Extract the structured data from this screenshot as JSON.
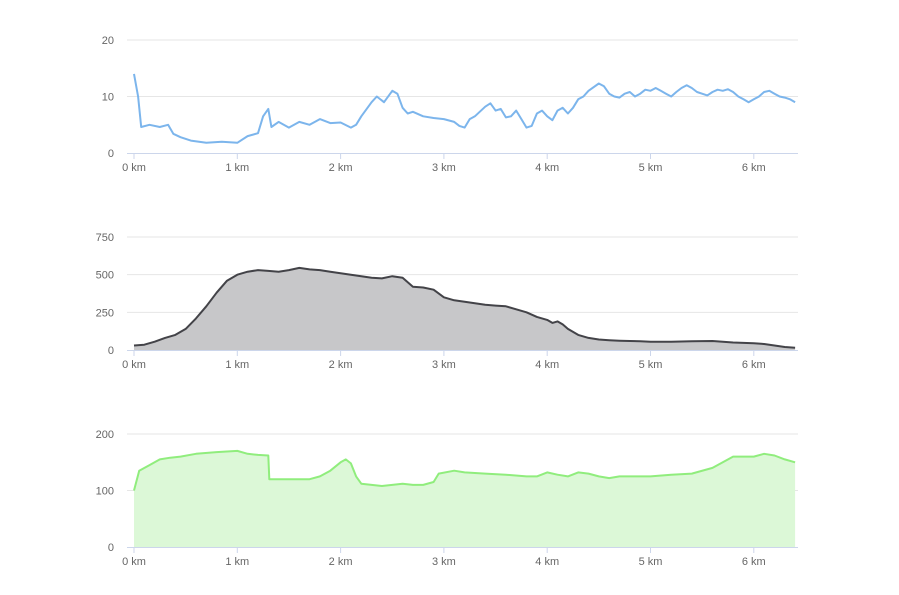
{
  "colors": {
    "speed_line": "#7cb5ec",
    "elevation_line": "#434348",
    "elevation_fill": "#c7c7c9",
    "heart_line": "#90ed7d",
    "heart_fill": "#dcf8d7",
    "grid": "#e6e6e6",
    "label": "#666666"
  },
  "chart_data": [
    {
      "type": "line",
      "xunit": "km",
      "xlim": [
        0,
        6.45
      ],
      "ylim": [
        0,
        20
      ],
      "xticks": [
        0,
        1,
        2,
        3,
        4,
        5,
        6
      ],
      "xtick_labels": [
        "0 km",
        "1 km",
        "2 km",
        "3 km",
        "4 km",
        "5 km",
        "6 km"
      ],
      "yticks": [
        0,
        10,
        20
      ],
      "ytick_labels": [
        "0",
        "10",
        "20"
      ],
      "grid": true,
      "series": [
        {
          "x": [
            0,
            0.04,
            0.07,
            0.15,
            0.25,
            0.33,
            0.38,
            0.45,
            0.55,
            0.7,
            0.85,
            1.0,
            1.1,
            1.2,
            1.25,
            1.3,
            1.33,
            1.4,
            1.5,
            1.6,
            1.7,
            1.8,
            1.9,
            2.0,
            2.1,
            2.15,
            2.2,
            2.3,
            2.35,
            2.42,
            2.5,
            2.55,
            2.6,
            2.65,
            2.7,
            2.8,
            2.9,
            3.0,
            3.1,
            3.15,
            3.2,
            3.25,
            3.3,
            3.4,
            3.45,
            3.5,
            3.55,
            3.6,
            3.65,
            3.7,
            3.75,
            3.8,
            3.85,
            3.9,
            3.95,
            4.0,
            4.05,
            4.1,
            4.15,
            4.2,
            4.25,
            4.3,
            4.35,
            4.4,
            4.5,
            4.55,
            4.6,
            4.65,
            4.7,
            4.75,
            4.8,
            4.85,
            4.9,
            4.95,
            5.0,
            5.05,
            5.1,
            5.15,
            5.2,
            5.25,
            5.3,
            5.35,
            5.4,
            5.45,
            5.5,
            5.55,
            5.6,
            5.65,
            5.7,
            5.75,
            5.8,
            5.85,
            5.9,
            5.95,
            6.0,
            6.05,
            6.1,
            6.15,
            6.2,
            6.25,
            6.3,
            6.35,
            6.4
          ],
          "values": [
            14,
            10,
            4.6,
            5.0,
            4.6,
            5.0,
            3.4,
            2.8,
            2.2,
            1.8,
            2.0,
            1.8,
            3.0,
            3.5,
            6.5,
            7.8,
            4.6,
            5.5,
            4.5,
            5.5,
            5.0,
            6.0,
            5.3,
            5.4,
            4.5,
            5.0,
            6.5,
            9.0,
            10.0,
            9.0,
            11.0,
            10.5,
            8.0,
            7.0,
            7.3,
            6.5,
            6.2,
            6.0,
            5.5,
            4.8,
            4.5,
            6.0,
            6.5,
            8.2,
            8.8,
            7.5,
            7.8,
            6.3,
            6.5,
            7.5,
            6.0,
            4.5,
            4.8,
            7.0,
            7.5,
            6.5,
            5.8,
            7.5,
            8.0,
            7.0,
            8.0,
            9.5,
            10.0,
            11.0,
            12.3,
            11.8,
            10.5,
            10.0,
            9.8,
            10.5,
            10.8,
            10.0,
            10.5,
            11.2,
            11.0,
            11.5,
            11.0,
            10.5,
            10.0,
            10.8,
            11.5,
            12.0,
            11.5,
            10.8,
            10.5,
            10.2,
            10.8,
            11.2,
            11.0,
            11.3,
            10.8,
            10.0,
            9.5,
            9.0,
            9.5,
            10.0,
            10.8,
            11.0,
            10.5,
            10.0,
            9.8,
            9.5,
            9.0
          ]
        }
      ]
    },
    {
      "type": "area",
      "xunit": "km",
      "xlim": [
        0,
        6.45
      ],
      "ylim": [
        0,
        750
      ],
      "xticks": [
        0,
        1,
        2,
        3,
        4,
        5,
        6
      ],
      "xtick_labels": [
        "0 km",
        "1 km",
        "2 km",
        "3 km",
        "4 km",
        "5 km",
        "6 km"
      ],
      "yticks": [
        0,
        250,
        500,
        750
      ],
      "ytick_labels": [
        "0",
        "250",
        "500",
        "750"
      ],
      "grid": true,
      "series": [
        {
          "x": [
            0,
            0.1,
            0.2,
            0.3,
            0.4,
            0.5,
            0.6,
            0.7,
            0.8,
            0.9,
            1.0,
            1.1,
            1.2,
            1.3,
            1.4,
            1.5,
            1.6,
            1.7,
            1.8,
            1.9,
            2.0,
            2.1,
            2.2,
            2.3,
            2.4,
            2.5,
            2.6,
            2.7,
            2.8,
            2.9,
            3.0,
            3.1,
            3.2,
            3.3,
            3.4,
            3.5,
            3.6,
            3.7,
            3.8,
            3.9,
            4.0,
            4.05,
            4.1,
            4.15,
            4.2,
            4.3,
            4.4,
            4.5,
            4.6,
            4.7,
            4.8,
            4.9,
            5.0,
            5.2,
            5.4,
            5.6,
            5.8,
            6.0,
            6.1,
            6.2,
            6.3,
            6.4
          ],
          "values": [
            30,
            35,
            55,
            80,
            100,
            140,
            210,
            290,
            380,
            460,
            500,
            520,
            530,
            525,
            520,
            530,
            545,
            535,
            530,
            520,
            510,
            500,
            490,
            480,
            475,
            490,
            480,
            420,
            415,
            400,
            350,
            330,
            320,
            310,
            300,
            295,
            290,
            270,
            250,
            220,
            200,
            180,
            190,
            170,
            140,
            100,
            80,
            70,
            65,
            62,
            60,
            58,
            55,
            55,
            58,
            60,
            50,
            45,
            40,
            30,
            20,
            15
          ]
        }
      ]
    },
    {
      "type": "area",
      "xunit": "km",
      "xlim": [
        0,
        6.45
      ],
      "ylim": [
        0,
        200
      ],
      "xticks": [
        0,
        1,
        2,
        3,
        4,
        5,
        6
      ],
      "xtick_labels": [
        "0 km",
        "1 km",
        "2 km",
        "3 km",
        "4 km",
        "5 km",
        "6 km"
      ],
      "yticks": [
        0,
        100,
        200
      ],
      "ytick_labels": [
        "0",
        "100",
        "200"
      ],
      "grid": true,
      "series": [
        {
          "x": [
            0,
            0.05,
            0.15,
            0.25,
            0.35,
            0.45,
            0.6,
            0.8,
            1.0,
            1.1,
            1.2,
            1.3,
            1.31,
            1.7,
            1.8,
            1.9,
            2.0,
            2.05,
            2.1,
            2.15,
            2.2,
            2.3,
            2.4,
            2.5,
            2.6,
            2.7,
            2.8,
            2.9,
            2.95,
            3.1,
            3.2,
            3.4,
            3.6,
            3.8,
            3.9,
            4.0,
            4.1,
            4.2,
            4.3,
            4.4,
            4.5,
            4.6,
            4.7,
            4.8,
            5.0,
            5.2,
            5.4,
            5.6,
            5.7,
            5.8,
            6.0,
            6.1,
            6.2,
            6.3,
            6.4
          ],
          "values": [
            100,
            135,
            145,
            155,
            158,
            160,
            165,
            168,
            170,
            165,
            163,
            162,
            120,
            120,
            125,
            135,
            150,
            155,
            148,
            125,
            112,
            110,
            108,
            110,
            112,
            110,
            110,
            115,
            130,
            135,
            132,
            130,
            128,
            125,
            125,
            132,
            128,
            125,
            132,
            130,
            125,
            122,
            125,
            125,
            125,
            128,
            130,
            140,
            150,
            160,
            160,
            165,
            162,
            155,
            150
          ]
        }
      ]
    }
  ]
}
